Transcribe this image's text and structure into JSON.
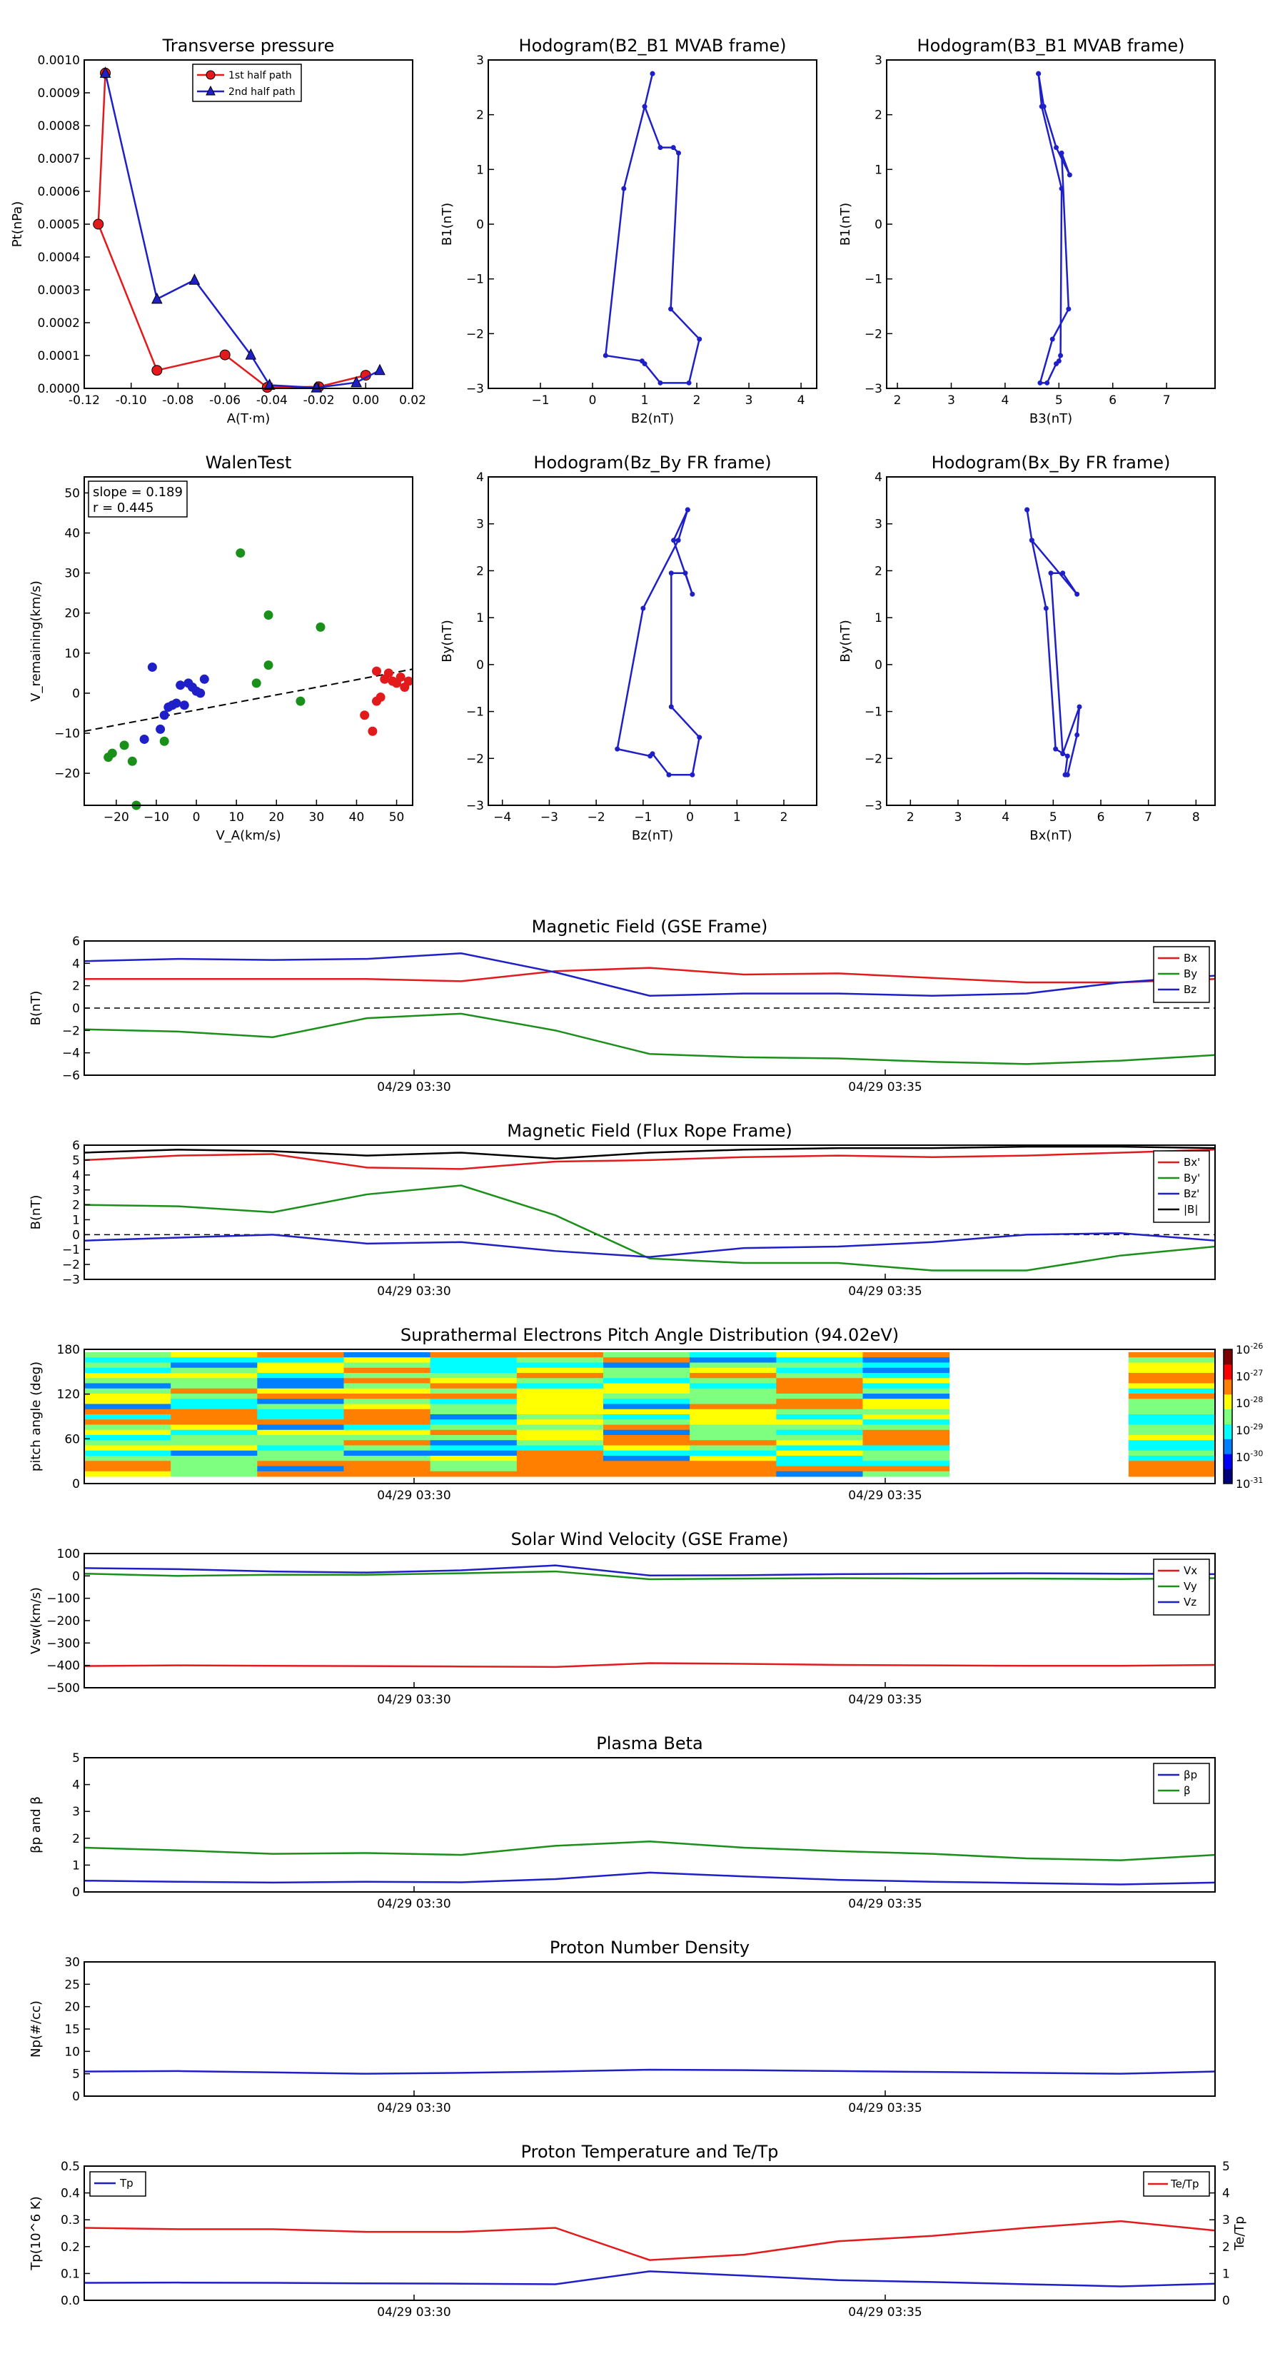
{
  "chart_data": [
    {
      "id": "transverse_pressure",
      "type": "line",
      "title": "Transverse pressure",
      "xlabel": "A(T·m)",
      "ylabel": "Pt(nPa)",
      "xlim": [
        -0.12,
        0.02
      ],
      "ylim": [
        0,
        0.001
      ],
      "xticks": [
        "-0.12",
        "-0.10",
        "-0.08",
        "-0.06",
        "-0.04",
        "-0.02",
        "0.00",
        "0.02"
      ],
      "yticks": [
        "0.0000",
        "0.0001",
        "0.0002",
        "0.0003",
        "0.0004",
        "0.0005",
        "0.0006",
        "0.0007",
        "0.0008",
        "0.0009",
        "0.0010"
      ],
      "legend": "top-center",
      "series": [
        {
          "name": "1st half path",
          "color": "#e31a1c",
          "marker": "circle",
          "x": [
            -0.111,
            -0.114,
            -0.089,
            -0.06,
            -0.042,
            -0.02,
            0.0
          ],
          "y": [
            0.00096,
            0.0005,
            5.5e-05,
            0.000102,
            3e-06,
            5e-06,
            4e-05
          ]
        },
        {
          "name": "2nd half path",
          "color": "#1f1fc8",
          "marker": "triangle",
          "x": [
            -0.111,
            -0.089,
            -0.073,
            -0.049,
            -0.041,
            -0.021,
            -0.004,
            0.006
          ],
          "y": [
            0.00096,
            0.000272,
            0.00033,
            0.000102,
            1e-05,
            2e-06,
            1.8e-05,
            5.5e-05
          ]
        }
      ]
    },
    {
      "id": "hodogram_b2_b1",
      "type": "line",
      "title": "Hodogram(B2_B1 MVAB frame)",
      "xlabel": "B2(nT)",
      "ylabel": "B1(nT)",
      "xlim": [
        -2,
        4.3
      ],
      "ylim": [
        -3,
        3
      ],
      "xticks": [
        "−1",
        "0",
        "1",
        "2",
        "3",
        "4"
      ],
      "yticks": [
        "−3",
        "−2",
        "−1",
        "0",
        "1",
        "2",
        "3"
      ],
      "series": [
        {
          "color": "#1f1fc8",
          "x": [
            1.15,
            1.0,
            0.6,
            0.25,
            0.95,
            1.0,
            1.3,
            1.85,
            2.05,
            1.5,
            1.65,
            1.55,
            1.3,
            1.0,
            1.15
          ],
          "y": [
            2.75,
            2.15,
            0.65,
            -2.4,
            -2.5,
            -2.55,
            -2.9,
            -2.9,
            -2.1,
            -1.55,
            1.3,
            1.4,
            1.4,
            2.15,
            2.75
          ]
        }
      ]
    },
    {
      "id": "hodogram_b3_b1",
      "type": "line",
      "title": "Hodogram(B3_B1 MVAB frame)",
      "xlabel": "B3(nT)",
      "ylabel": "B1(nT)",
      "xlim": [
        1.8,
        7.9
      ],
      "ylim": [
        -3,
        3
      ],
      "xticks": [
        "2",
        "3",
        "4",
        "5",
        "6",
        "7"
      ],
      "yticks": [
        "−3",
        "−2",
        "−1",
        "0",
        "1",
        "2",
        "3"
      ],
      "series": [
        {
          "color": "#1f1fc8",
          "x": [
            4.62,
            4.68,
            5.05,
            5.03,
            5.0,
            4.95,
            4.78,
            4.65,
            4.88,
            5.18,
            5.05,
            5.2,
            4.95,
            4.72,
            4.62
          ],
          "y": [
            2.75,
            2.15,
            0.65,
            -2.4,
            -2.5,
            -2.55,
            -2.9,
            -2.9,
            -2.1,
            -1.55,
            1.3,
            0.9,
            1.4,
            2.15,
            2.75
          ]
        }
      ]
    },
    {
      "id": "walen_test",
      "type": "scatter",
      "title": "WalenTest",
      "xlabel": "V_A(km/s)",
      "ylabel": "V_remaining(km/s)",
      "annotation": [
        "slope = 0.189",
        "r = 0.445"
      ],
      "xlim": [
        -28,
        54
      ],
      "ylim": [
        -28,
        54
      ],
      "xticks": [
        "−20",
        "−10",
        "0",
        "10",
        "20",
        "30",
        "40",
        "50"
      ],
      "yticks": [
        "−20",
        "−10",
        "0",
        "10",
        "20",
        "30",
        "40",
        "50"
      ],
      "fit_line": {
        "slope": 0.189,
        "intercept": -4.2
      },
      "series": [
        {
          "color": "#1f1fc8",
          "x": [
            -11,
            -8,
            -6,
            -5,
            -4,
            -3,
            -2,
            -1,
            0,
            1,
            2,
            -13,
            -9,
            -7
          ],
          "y": [
            6.5,
            -5.5,
            -3,
            -2.5,
            2,
            -3,
            2.5,
            1.5,
            0.5,
            0,
            3.5,
            -11.5,
            -9,
            -3.5
          ]
        },
        {
          "color": "#1a8f1a",
          "x": [
            11,
            18,
            31,
            18,
            15,
            26,
            -8,
            -18,
            -16,
            -21,
            -22,
            -15
          ],
          "y": [
            35,
            19.5,
            16.5,
            7,
            2.5,
            -2,
            -12,
            -13,
            -17,
            -15,
            -16,
            -28
          ]
        },
        {
          "color": "#e31a1c",
          "x": [
            45,
            47,
            48,
            49,
            50,
            52,
            51,
            53,
            42,
            44,
            45,
            46
          ],
          "y": [
            5.5,
            3.5,
            5,
            3,
            2.5,
            1.5,
            4,
            3,
            -5.5,
            -9.5,
            -2,
            -1
          ]
        }
      ]
    },
    {
      "id": "hodogram_bz_by",
      "type": "line",
      "title": "Hodogram(Bz_By FR frame)",
      "xlabel": "Bz(nT)",
      "ylabel": "By(nT)",
      "xlim": [
        -4.3,
        2.7
      ],
      "ylim": [
        -3,
        4
      ],
      "xticks": [
        "−4",
        "−3",
        "−2",
        "−1",
        "0",
        "1",
        "2"
      ],
      "yticks": [
        "−3",
        "−2",
        "−1",
        "0",
        "1",
        "2",
        "3",
        "4"
      ],
      "series": [
        {
          "color": "#1f1fc8",
          "x": [
            -0.05,
            -0.25,
            -1.0,
            -1.55,
            -0.85,
            -0.8,
            -0.45,
            0.05,
            0.2,
            -0.4,
            -0.4,
            -0.1,
            0.05,
            -0.35,
            -0.05
          ],
          "y": [
            3.3,
            2.65,
            1.2,
            -1.8,
            -1.95,
            -1.9,
            -2.35,
            -2.35,
            -1.55,
            -0.9,
            1.95,
            1.95,
            1.5,
            2.65,
            3.3
          ]
        }
      ]
    },
    {
      "id": "hodogram_bx_by",
      "type": "line",
      "title": "Hodogram(Bx_By FR frame)",
      "xlabel": "Bx(nT)",
      "ylabel": "By(nT)",
      "xlim": [
        1.5,
        8.4
      ],
      "ylim": [
        -3,
        4
      ],
      "xticks": [
        "2",
        "3",
        "4",
        "5",
        "6",
        "7",
        "8"
      ],
      "yticks": [
        "−3",
        "−2",
        "−1",
        "0",
        "1",
        "2",
        "3",
        "4"
      ],
      "series": [
        {
          "color": "#1f1fc8",
          "x": [
            4.45,
            4.55,
            4.85,
            5.05,
            5.3,
            5.25,
            5.3,
            5.5,
            5.55,
            5.2,
            4.95,
            5.2,
            5.5,
            4.55,
            4.45
          ],
          "y": [
            3.3,
            2.65,
            1.2,
            -1.8,
            -1.95,
            -2.35,
            -2.35,
            -1.5,
            -0.9,
            -1.9,
            1.95,
            1.95,
            1.5,
            2.65,
            3.3
          ]
        }
      ]
    },
    {
      "id": "mag_gse",
      "type": "line",
      "title": "Magnetic Field (GSE Frame)",
      "ylabel": "B(nT)",
      "ylim": [
        -6,
        6
      ],
      "yticks": [
        "−6",
        "−4",
        "−2",
        "0",
        "2",
        "4",
        "6"
      ],
      "xticks": [
        "04/29 03:30",
        "04/29 03:35"
      ],
      "zero_line": true,
      "legend": "top-right",
      "series": [
        {
          "name": "Bx",
          "color": "#e31a1c",
          "values": [
            2.6,
            2.6,
            2.6,
            2.6,
            2.4,
            3.3,
            3.6,
            3.0,
            3.1,
            2.7,
            2.3,
            2.3,
            2.6
          ]
        },
        {
          "name": "By",
          "color": "#1a8f1a",
          "values": [
            -1.9,
            -2.1,
            -2.6,
            -0.9,
            -0.5,
            -2.0,
            -4.1,
            -4.4,
            -4.5,
            -4.8,
            -5.0,
            -4.7,
            -4.2
          ]
        },
        {
          "name": "Bz",
          "color": "#1f1fc8",
          "values": [
            4.2,
            4.4,
            4.3,
            4.4,
            4.9,
            3.2,
            1.1,
            1.3,
            1.3,
            1.1,
            1.3,
            2.3,
            2.9
          ]
        }
      ]
    },
    {
      "id": "mag_fr",
      "type": "line",
      "title": "Magnetic Field (Flux Rope Frame)",
      "ylabel": "B(nT)",
      "ylim": [
        -3,
        6
      ],
      "yticks": [
        "−3",
        "−2",
        "−1",
        "0",
        "1",
        "2",
        "3",
        "4",
        "5",
        "6"
      ],
      "xticks": [
        "04/29 03:30",
        "04/29 03:35"
      ],
      "zero_line": true,
      "legend": "top-right",
      "series": [
        {
          "name": "Bx'",
          "color": "#e31a1c",
          "values": [
            5.0,
            5.3,
            5.4,
            4.5,
            4.4,
            4.9,
            5.0,
            5.2,
            5.3,
            5.2,
            5.3,
            5.5,
            5.7
          ]
        },
        {
          "name": "By'",
          "color": "#1a8f1a",
          "values": [
            2.0,
            1.9,
            1.5,
            2.7,
            3.3,
            1.3,
            -1.6,
            -1.9,
            -1.9,
            -2.4,
            -2.4,
            -1.4,
            -0.8
          ]
        },
        {
          "name": "Bz'",
          "color": "#1f1fc8",
          "values": [
            -0.4,
            -0.2,
            0.0,
            -0.6,
            -0.5,
            -1.1,
            -1.5,
            -0.9,
            -0.8,
            -0.5,
            0.0,
            0.1,
            -0.4
          ]
        },
        {
          "name": "|B|",
          "color": "#000000",
          "values": [
            5.5,
            5.7,
            5.6,
            5.3,
            5.5,
            5.1,
            5.5,
            5.7,
            5.8,
            5.8,
            5.9,
            5.9,
            5.8
          ]
        }
      ]
    },
    {
      "id": "pad",
      "type": "heatmap",
      "title": "Suprathermal Electrons Pitch Angle Distribution (94.02eV)",
      "ylabel": "pitch angle (deg)",
      "ylim": [
        0,
        180
      ],
      "yticks": [
        "0",
        "60",
        "120",
        "180"
      ],
      "xticks": [
        "04/29 03:30",
        "04/29 03:35"
      ],
      "colorbar": {
        "ticks": [
          "10-31",
          "10-30",
          "10-29",
          "10-28",
          "10-27",
          "10-26"
        ],
        "tick_base": "10",
        "tick_exp": [
          "-31",
          "-30",
          "-29",
          "-28",
          "-27",
          "-26"
        ],
        "colors": [
          "#00007f",
          "#0000ff",
          "#007fff",
          "#00ffff",
          "#7fff7f",
          "#ffff00",
          "#ff7f00",
          "#ff0000",
          "#7f0000"
        ]
      },
      "columns": 12,
      "empty_columns": [
        10
      ]
    },
    {
      "id": "vsw",
      "type": "line",
      "title": "Solar Wind Velocity (GSE Frame)",
      "ylabel": "Vsw(km/s)",
      "ylim": [
        -500,
        100
      ],
      "yticks": [
        "−500",
        "−400",
        "−300",
        "−200",
        "−100",
        "0",
        "100"
      ],
      "xticks": [
        "04/29 03:30",
        "04/29 03:35"
      ],
      "legend": "top-right",
      "series": [
        {
          "name": "Vx",
          "color": "#e31a1c",
          "values": [
            -403,
            -400,
            -402,
            -403,
            -405,
            -407,
            -390,
            -393,
            -398,
            -400,
            -402,
            -402,
            -398
          ]
        },
        {
          "name": "Vy",
          "color": "#1a8f1a",
          "values": [
            10,
            0,
            5,
            5,
            12,
            20,
            -15,
            -12,
            -10,
            -12,
            -12,
            -14,
            -10
          ]
        },
        {
          "name": "Vz",
          "color": "#1f1fc8",
          "values": [
            35,
            30,
            20,
            15,
            25,
            47,
            2,
            3,
            8,
            10,
            12,
            10,
            8
          ]
        }
      ]
    },
    {
      "id": "beta",
      "type": "line",
      "title": "Plasma Beta",
      "ylabel": "βp and β",
      "ylim": [
        0,
        5
      ],
      "yticks": [
        "0",
        "1",
        "2",
        "3",
        "4",
        "5"
      ],
      "xticks": [
        "04/29 03:30",
        "04/29 03:35"
      ],
      "legend": "top-right",
      "series": [
        {
          "name": "βp",
          "color": "#1f1fc8",
          "values": [
            0.42,
            0.38,
            0.35,
            0.38,
            0.36,
            0.48,
            0.72,
            0.58,
            0.45,
            0.38,
            0.33,
            0.28,
            0.35
          ]
        },
        {
          "name": "β",
          "color": "#1a8f1a",
          "values": [
            1.65,
            1.55,
            1.42,
            1.45,
            1.38,
            1.72,
            1.88,
            1.65,
            1.52,
            1.42,
            1.25,
            1.18,
            1.38
          ]
        }
      ]
    },
    {
      "id": "np",
      "type": "line",
      "title": "Proton Number Density",
      "ylabel": "Np(#/cc)",
      "ylim": [
        0,
        30
      ],
      "yticks": [
        "0",
        "5",
        "10",
        "15",
        "20",
        "25",
        "30"
      ],
      "xticks": [
        "04/29 03:30",
        "04/29 03:35"
      ],
      "series": [
        {
          "color": "#1f1fc8",
          "values": [
            5.5,
            5.6,
            5.3,
            5.0,
            5.2,
            5.5,
            5.9,
            5.8,
            5.6,
            5.4,
            5.2,
            5.0,
            5.5
          ]
        }
      ]
    },
    {
      "id": "tp",
      "type": "line",
      "title": "Proton Temperature and Te/Tp",
      "ylabel": "Tp(10^6 K)",
      "ylabel_right": "Te/Tp",
      "ylim": [
        0,
        0.5
      ],
      "ylim_right": [
        0,
        5
      ],
      "yticks": [
        "0.0",
        "0.1",
        "0.2",
        "0.3",
        "0.4",
        "0.5"
      ],
      "yticks_right": [
        "0",
        "1",
        "2",
        "3",
        "4",
        "5"
      ],
      "xticks": [
        "04/29 03:30",
        "04/29 03:35"
      ],
      "series": [
        {
          "name": "Tp",
          "color": "#1f1fc8",
          "axis": "left",
          "values": [
            0.065,
            0.066,
            0.065,
            0.063,
            0.062,
            0.06,
            0.108,
            0.092,
            0.075,
            0.068,
            0.06,
            0.052,
            0.062
          ]
        },
        {
          "name": "Te/Tp",
          "color": "#e31a1c",
          "axis": "right",
          "values": [
            2.7,
            2.65,
            2.65,
            2.55,
            2.55,
            2.7,
            1.5,
            1.7,
            2.2,
            2.4,
            2.7,
            2.95,
            2.6
          ]
        }
      ]
    }
  ],
  "time_axis": {
    "t_start": -12.0,
    "t_end": 12.0,
    "tick_values": [
      -5.0,
      5.0
    ]
  }
}
